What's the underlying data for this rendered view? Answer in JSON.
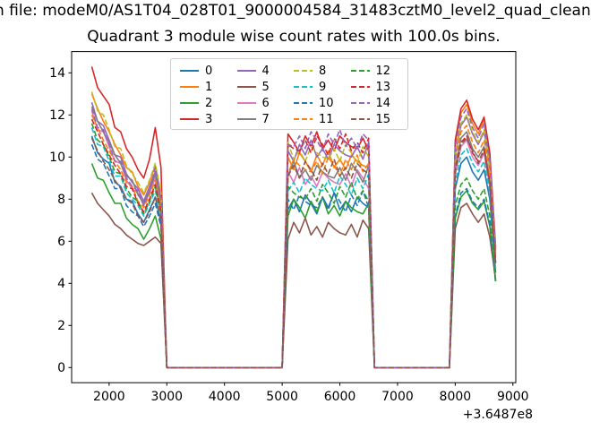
{
  "figure": {
    "background": "#ffffff"
  },
  "suptitle": {
    "text": "n file: modeM0/AS1T04_028T01_9000004584_31483cztM0_level2_quad_clean"
  },
  "title": {
    "text": "Quadrant 3 module wise count rates with 100.0s bins."
  },
  "axis": {
    "x_offset_text": "+3.6487e8"
  },
  "chart_data": {
    "type": "line",
    "title": "Quadrant 3 module wise count rates with 100.0s bins.",
    "suptitle_fragment": "n file: modeM0/AS1T04_028T01_9000004584_31483cztM0_level2_quad_clean",
    "xlabel": "",
    "ylabel": "",
    "x_offset": "+3.6487e8",
    "bin_seconds": 100.0,
    "xlim": [
      1350,
      9050
    ],
    "ylim": [
      -0.72,
      15.01
    ],
    "x_ticks": [
      2000,
      3000,
      4000,
      5000,
      6000,
      7000,
      8000,
      9000
    ],
    "y_ticks": [
      0,
      2,
      4,
      6,
      8,
      10,
      12,
      14
    ],
    "grid": false,
    "legend": {
      "position": "upper center",
      "columns": 4,
      "rows": 4
    },
    "x_segments": {
      "hump1": {
        "start": 1700,
        "step": 100
      },
      "hump2": {
        "start": 5100,
        "step": 100
      },
      "hump3": {
        "start": 8000,
        "step": 100
      }
    },
    "zero_intervals": [
      [
        3000,
        5000
      ],
      [
        6600,
        7900
      ]
    ],
    "series": [
      {
        "label": "0",
        "color": "#1f77b4",
        "dash": false,
        "h1": [
          11.0,
          10.2,
          9.9,
          9.7,
          8.8,
          8.6,
          8.0,
          7.9,
          7.3,
          6.9,
          7.5,
          8.1,
          6.9
        ],
        "h2": [
          7.5,
          8.0,
          7.4,
          8.2,
          7.8,
          7.3,
          8.1,
          7.6,
          8.3,
          7.5,
          7.9,
          7.4,
          8.1,
          7.8,
          7.6
        ],
        "h3": [
          8.5,
          9.7,
          10.0,
          9.3,
          8.9,
          9.4,
          8.0,
          4.5
        ]
      },
      {
        "label": "1",
        "color": "#ff7f0e",
        "dash": false,
        "h1": [
          13.0,
          12.3,
          11.7,
          11.2,
          10.6,
          10.1,
          9.5,
          9.3,
          8.6,
          8.2,
          8.8,
          9.6,
          8.2
        ],
        "h2": [
          10.0,
          9.4,
          10.2,
          9.8,
          9.3,
          10.1,
          9.6,
          10.3,
          9.5,
          9.9,
          9.4,
          10.1,
          9.8,
          9.6,
          9.5
        ],
        "h3": [
          10.6,
          12.1,
          12.5,
          11.6,
          11.1,
          11.8,
          10.0,
          5.6
        ]
      },
      {
        "label": "2",
        "color": "#2ca02c",
        "dash": false,
        "h1": [
          9.7,
          9.0,
          8.9,
          8.3,
          7.8,
          7.8,
          7.1,
          6.8,
          6.6,
          6.1,
          6.6,
          7.2,
          6.1
        ],
        "h2": [
          7.2,
          8.0,
          7.6,
          7.1,
          7.9,
          7.4,
          8.1,
          7.3,
          7.7,
          7.2,
          7.9,
          7.6,
          7.4,
          7.3,
          7.8
        ],
        "h3": [
          7.1,
          8.1,
          8.4,
          7.8,
          7.5,
          7.9,
          6.7,
          4.1
        ]
      },
      {
        "label": "3",
        "color": "#d62728",
        "dash": false,
        "h1": [
          14.3,
          13.3,
          12.9,
          12.5,
          11.4,
          11.2,
          10.4,
          10.0,
          9.4,
          9.0,
          9.9,
          11.4,
          9.5
        ],
        "h2": [
          11.1,
          10.7,
          10.2,
          11.0,
          10.5,
          11.2,
          10.4,
          10.8,
          10.3,
          11.0,
          10.7,
          10.5,
          10.4,
          10.9,
          10.3
        ],
        "h3": [
          10.8,
          12.3,
          12.7,
          11.8,
          11.3,
          11.9,
          10.2,
          5.7
        ]
      },
      {
        "label": "4",
        "color": "#9467bd",
        "dash": false,
        "h1": [
          12.6,
          11.7,
          11.5,
          10.8,
          10.1,
          10.0,
          9.2,
          8.8,
          8.5,
          7.9,
          8.6,
          9.3,
          7.9
        ],
        "h2": [
          10.3,
          9.8,
          10.6,
          10.1,
          10.8,
          10.0,
          10.4,
          9.9,
          10.6,
          10.3,
          10.1,
          10.0,
          10.5,
          9.9,
          10.7
        ],
        "h3": [
          10.1,
          11.5,
          11.9,
          11.1,
          10.6,
          11.2,
          9.5,
          5.4
        ]
      },
      {
        "label": "5",
        "color": "#8c564b",
        "dash": false,
        "h1": [
          8.3,
          7.8,
          7.5,
          7.2,
          6.8,
          6.6,
          6.3,
          6.1,
          5.9,
          5.8,
          6.0,
          6.2,
          5.9
        ],
        "h2": [
          6.1,
          6.9,
          6.4,
          7.1,
          6.3,
          6.7,
          6.2,
          6.9,
          6.6,
          6.4,
          6.3,
          6.8,
          6.2,
          7.0,
          6.6
        ],
        "h3": [
          6.6,
          7.6,
          7.8,
          7.3,
          6.9,
          7.3,
          6.2,
          4.2
        ]
      },
      {
        "label": "6",
        "color": "#e377c2",
        "dash": false,
        "h1": [
          12.2,
          11.3,
          11.2,
          10.5,
          9.8,
          9.7,
          8.9,
          8.5,
          8.3,
          7.7,
          8.3,
          9.0,
          7.7
        ],
        "h2": [
          9.3,
          8.8,
          9.5,
          8.7,
          9.1,
          8.6,
          9.3,
          9.0,
          8.8,
          8.7,
          9.2,
          8.6,
          9.4,
          9.0,
          8.5
        ],
        "h3": [
          9.2,
          10.5,
          10.8,
          10.0,
          9.6,
          10.2,
          8.6,
          4.9
        ]
      },
      {
        "label": "7",
        "color": "#7f7f7f",
        "dash": false,
        "h1": [
          12.4,
          11.7,
          11.2,
          10.7,
          10.1,
          9.7,
          9.1,
          8.9,
          8.2,
          7.8,
          8.4,
          9.2,
          7.8
        ],
        "h2": [
          9.1,
          9.8,
          9.0,
          9.4,
          8.9,
          9.6,
          9.3,
          9.1,
          9.0,
          9.5,
          8.9,
          9.7,
          9.3,
          8.8,
          9.6
        ],
        "h3": [
          9.5,
          10.9,
          11.2,
          10.4,
          10.0,
          10.5,
          9.0,
          5.0
        ]
      },
      {
        "label": "8",
        "color": "#bcbd22",
        "dash": true,
        "h1": [
          13.1,
          12.2,
          12.0,
          11.3,
          10.5,
          10.4,
          9.6,
          9.2,
          8.8,
          8.3,
          8.9,
          9.7,
          8.3
        ],
        "h2": [
          10.7,
          9.9,
          10.3,
          9.8,
          10.5,
          10.2,
          10.0,
          9.9,
          10.4,
          9.8,
          10.6,
          10.2,
          9.7,
          10.5,
          10.0
        ],
        "h3": [
          10.2,
          11.6,
          12.0,
          11.2,
          10.7,
          11.3,
          9.6,
          5.4
        ]
      },
      {
        "label": "9",
        "color": "#17becf",
        "dash": true,
        "h1": [
          11.4,
          10.6,
          10.5,
          9.8,
          9.1,
          9.1,
          8.3,
          8.0,
          7.7,
          7.2,
          7.8,
          8.4,
          7.2
        ],
        "h2": [
          8.4,
          8.8,
          8.3,
          9.0,
          8.7,
          8.5,
          8.4,
          8.9,
          8.3,
          9.1,
          8.7,
          8.2,
          9.0,
          8.5,
          9.2
        ],
        "h3": [
          8.8,
          10.1,
          10.4,
          9.7,
          9.3,
          9.8,
          8.3,
          4.7
        ]
      },
      {
        "label": "10",
        "color": "#1f77b4",
        "dash": true,
        "h1": [
          10.6,
          9.9,
          9.7,
          9.1,
          8.5,
          8.5,
          7.7,
          7.4,
          7.2,
          6.7,
          7.2,
          7.8,
          6.7
        ],
        "h2": [
          8.0,
          7.5,
          8.2,
          7.9,
          7.7,
          7.6,
          8.1,
          7.5,
          8.3,
          7.9,
          7.4,
          8.2,
          7.7,
          8.4,
          7.6
        ],
        "h3": [
          7.2,
          8.3,
          8.5,
          7.9,
          7.6,
          8.0,
          6.8,
          4.0
        ]
      },
      {
        "label": "11",
        "color": "#ff7f0e",
        "dash": true,
        "h1": [
          12.0,
          11.4,
          10.8,
          10.3,
          9.8,
          9.4,
          8.8,
          8.6,
          7.9,
          7.6,
          8.2,
          8.9,
          7.6
        ],
        "h2": [
          9.2,
          9.9,
          9.6,
          9.4,
          9.3,
          9.8,
          9.2,
          10.0,
          9.6,
          9.1,
          9.9,
          9.4,
          10.1,
          9.3,
          9.7
        ],
        "h3": [
          9.8,
          11.2,
          11.5,
          10.7,
          10.2,
          10.8,
          9.2,
          5.2
        ]
      },
      {
        "label": "12",
        "color": "#2ca02c",
        "dash": true,
        "h1": [
          11.6,
          10.8,
          10.6,
          10.0,
          9.3,
          9.2,
          8.5,
          8.1,
          7.9,
          7.3,
          7.9,
          8.6,
          7.3
        ],
        "h2": [
          8.6,
          8.3,
          8.1,
          8.0,
          8.5,
          7.9,
          8.7,
          8.3,
          7.8,
          8.6,
          8.1,
          8.8,
          8.0,
          8.4,
          7.9
        ],
        "h3": [
          7.7,
          8.7,
          9.0,
          8.4,
          8.0,
          8.5,
          7.2,
          4.1
        ]
      },
      {
        "label": "13",
        "color": "#d62728",
        "dash": true,
        "h1": [
          11.8,
          11.2,
          10.6,
          10.1,
          9.6,
          9.2,
          8.6,
          8.5,
          7.8,
          7.4,
          8.0,
          8.7,
          7.4
        ],
        "h2": [
          10.6,
          10.4,
          10.3,
          10.8,
          10.2,
          11.0,
          10.6,
          10.1,
          10.9,
          10.4,
          11.1,
          10.3,
          10.7,
          10.2,
          10.9
        ],
        "h3": [
          9.4,
          10.7,
          11.0,
          10.2,
          9.8,
          10.3,
          8.8,
          5.0
        ]
      },
      {
        "label": "14",
        "color": "#9467bd",
        "dash": true,
        "h1": [
          12.3,
          11.4,
          11.3,
          10.6,
          9.8,
          9.8,
          9.0,
          8.6,
          8.4,
          7.7,
          8.4,
          9.5,
          8.0
        ],
        "h2": [
          10.6,
          10.5,
          11.0,
          10.4,
          11.2,
          10.8,
          10.3,
          11.1,
          10.6,
          11.3,
          10.5,
          10.9,
          10.4,
          11.1,
          10.8
        ],
        "h3": [
          10.5,
          11.9,
          12.3,
          11.4,
          10.9,
          11.6,
          9.8,
          5.5
        ]
      },
      {
        "label": "15",
        "color": "#8c564b",
        "dash": true,
        "h1": [
          10.9,
          10.3,
          9.8,
          9.4,
          8.9,
          8.5,
          8.0,
          7.8,
          7.2,
          6.9,
          7.4,
          8.1,
          6.9
        ],
        "h2": [
          9.1,
          9.6,
          9.0,
          9.8,
          9.4,
          8.9,
          9.7,
          9.2,
          9.9,
          9.1,
          9.5,
          9.0,
          9.7,
          9.4,
          9.2
        ],
        "h3": [
          9.3,
          10.6,
          10.9,
          10.3,
          9.7,
          10.4,
          8.7,
          4.9
        ]
      }
    ]
  }
}
